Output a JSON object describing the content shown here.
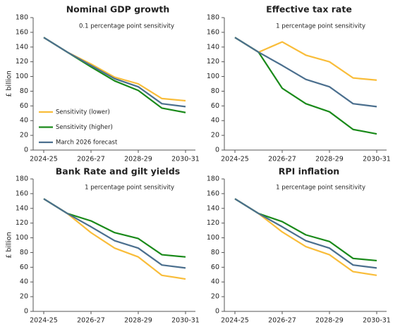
{
  "chart_data": [
    {
      "type": "line",
      "title": "Nominal GDP growth",
      "annotation": "0.1 percentage point sensitivity",
      "y_label": "£ billion",
      "categories": [
        "2024-25",
        null,
        "2026-27",
        null,
        "2028-29",
        null,
        "2030-31"
      ],
      "ylim": [
        0,
        180
      ],
      "yticks": [
        0,
        20,
        40,
        60,
        80,
        100,
        120,
        140,
        160,
        180
      ],
      "legend": "lower left",
      "series": [
        {
          "name": "Sensitivity (lower)",
          "color": "#f9bd3a",
          "values": [
            153,
            133,
            117,
            99,
            90,
            70,
            67
          ]
        },
        {
          "name": "Sensitivity (higher)",
          "color": "#1a8a1a",
          "values": [
            153,
            133,
            113,
            94,
            81,
            57,
            51
          ]
        },
        {
          "name": "March 2026 forecast",
          "color": "#4b6f8e",
          "values": [
            153,
            133,
            115,
            97,
            86,
            63,
            59
          ]
        }
      ]
    },
    {
      "type": "line",
      "title": "Effective tax rate",
      "annotation": "1 percentage point sensitivity",
      "categories": [
        "2024-25",
        null,
        "2026-27",
        null,
        "2028-29",
        null,
        "2030-31"
      ],
      "ylim": [
        0,
        180
      ],
      "yticks": [
        0,
        20,
        40,
        60,
        80,
        100,
        120,
        140,
        160,
        180
      ],
      "series": [
        {
          "color": "#f9bd3a",
          "values": [
            153,
            133,
            147,
            129,
            120,
            98,
            95
          ]
        },
        {
          "color": "#1a8a1a",
          "values": [
            153,
            133,
            84,
            63,
            52,
            28,
            22
          ]
        },
        {
          "color": "#4b6f8e",
          "values": [
            153,
            133,
            115,
            96,
            86,
            63,
            59
          ]
        }
      ]
    },
    {
      "type": "line",
      "title": "Bank Rate and gilt yields",
      "annotation": "1 percentage point sensitivity",
      "y_label": "£ billion",
      "categories": [
        "2024-25",
        null,
        "2026-27",
        null,
        "2028-29",
        null,
        "2030-31"
      ],
      "ylim": [
        0,
        180
      ],
      "yticks": [
        0,
        20,
        40,
        60,
        80,
        100,
        120,
        140,
        160,
        180
      ],
      "series": [
        {
          "color": "#f9bd3a",
          "values": [
            153,
            133,
            107,
            86,
            74,
            49,
            44
          ]
        },
        {
          "color": "#1a8a1a",
          "values": [
            153,
            133,
            123,
            107,
            99,
            77,
            74
          ]
        },
        {
          "color": "#4b6f8e",
          "values": [
            153,
            133,
            115,
            96,
            86,
            63,
            59
          ]
        }
      ]
    },
    {
      "type": "line",
      "title": "RPI inflation",
      "annotation": "1 percentage point sensitivity",
      "categories": [
        "2024-25",
        null,
        "2026-27",
        null,
        "2028-29",
        null,
        "2030-31"
      ],
      "ylim": [
        0,
        180
      ],
      "yticks": [
        0,
        20,
        40,
        60,
        80,
        100,
        120,
        140,
        160,
        180
      ],
      "series": [
        {
          "color": "#f9bd3a",
          "values": [
            153,
            133,
            108,
            88,
            77,
            54,
            49
          ]
        },
        {
          "color": "#1a8a1a",
          "values": [
            153,
            133,
            122,
            104,
            95,
            72,
            69
          ]
        },
        {
          "color": "#4b6f8e",
          "values": [
            153,
            133,
            115,
            96,
            86,
            63,
            59
          ]
        }
      ]
    }
  ]
}
